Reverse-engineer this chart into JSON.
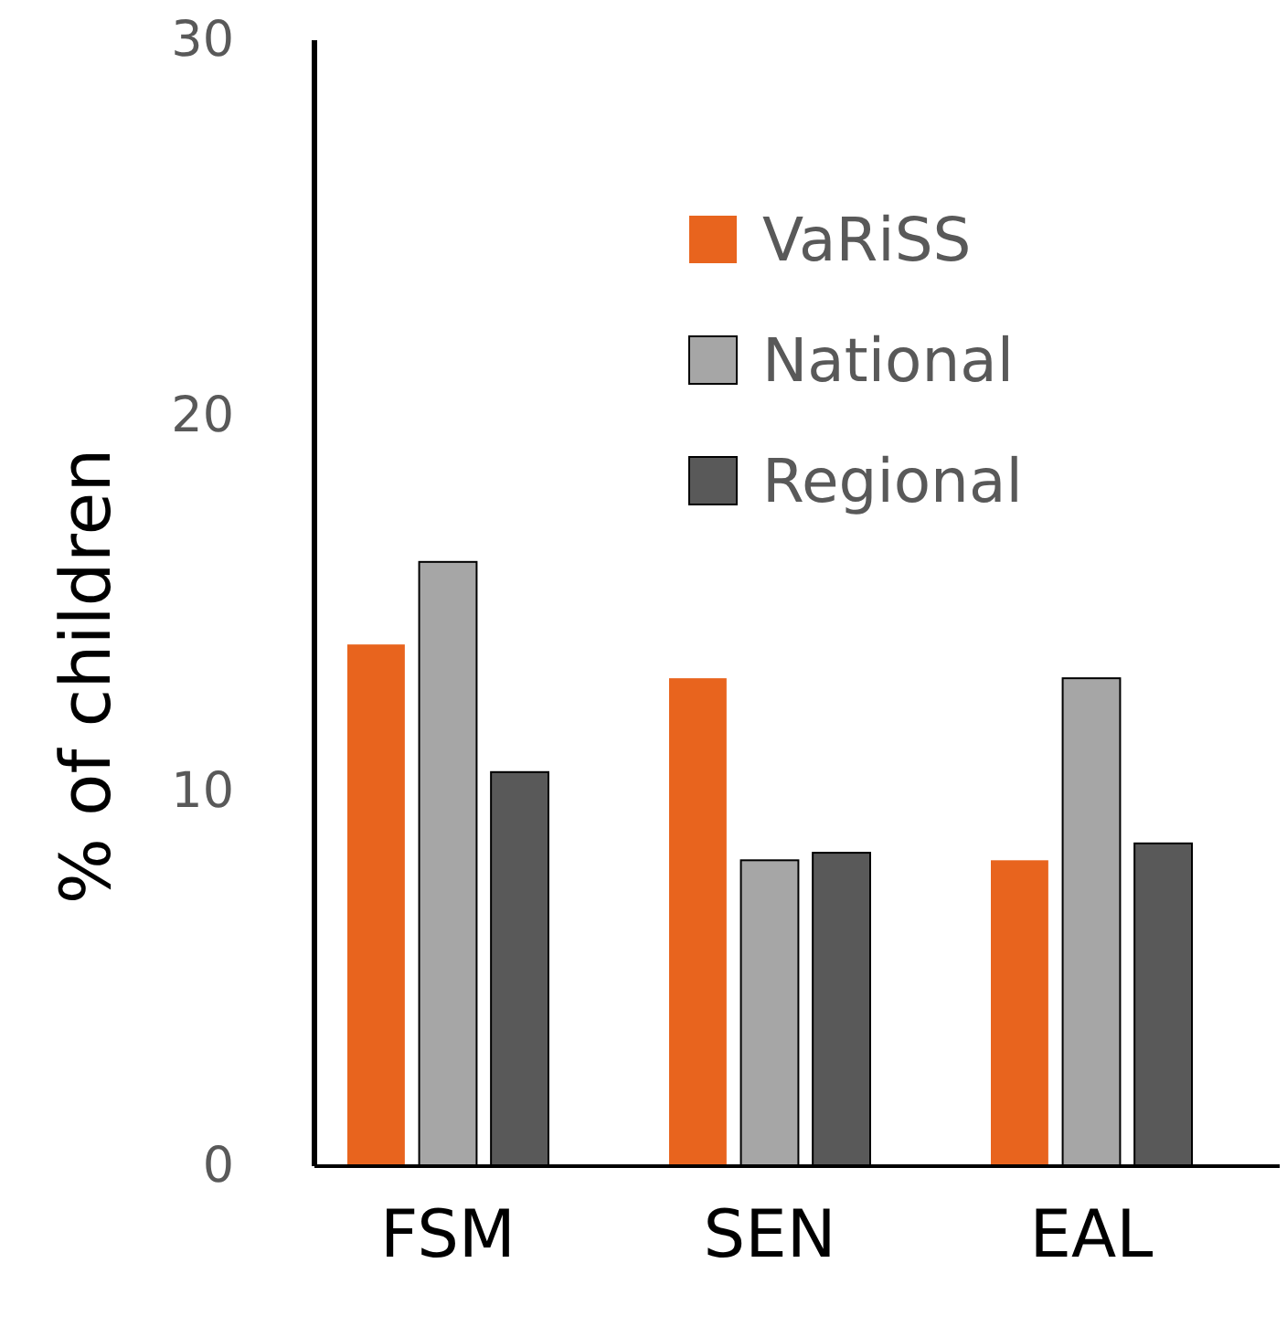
{
  "chart_data": {
    "type": "bar",
    "ylabel": "% of children",
    "categories": [
      "FSM",
      "SEN",
      "EAL"
    ],
    "series": [
      {
        "name": "VaRiSS",
        "color": "#e8641e",
        "values": [
          13.9,
          13.0,
          8.15
        ]
      },
      {
        "name": "National",
        "color": "#a6a6a6",
        "values": [
          16.1,
          8.15,
          13.0
        ]
      },
      {
        "name": "Regional",
        "color": "#595959",
        "values": [
          10.5,
          8.35,
          8.6
        ]
      }
    ],
    "ylim": [
      0,
      30
    ],
    "yticks": [
      0,
      10,
      20,
      30
    ],
    "grid": false,
    "legend": "top right"
  }
}
